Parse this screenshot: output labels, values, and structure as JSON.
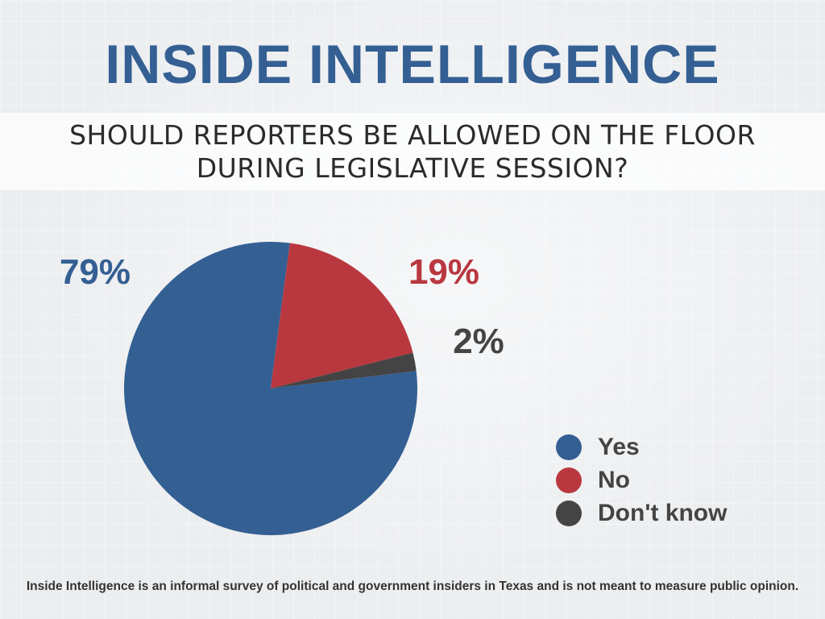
{
  "header": {
    "title": "INSIDE INTELLIGENCE",
    "question_line1": "SHOULD REPORTERS BE ALLOWED ON THE FLOOR",
    "question_line2": "DURING LEGISLATIVE SESSION?"
  },
  "chart_data": {
    "type": "pie",
    "title": "SHOULD REPORTERS BE ALLOWED ON THE FLOOR DURING LEGISLATIVE SESSION?",
    "categories": [
      "Yes",
      "No",
      "Don't know"
    ],
    "values": [
      79,
      19,
      2
    ],
    "value_labels": [
      "79%",
      "19%",
      "2%"
    ],
    "colors": [
      "#345f93",
      "#b9383f",
      "#444444"
    ],
    "legend_position": "bottom-right"
  },
  "legend": {
    "items": [
      {
        "label": "Yes",
        "color": "#345f93"
      },
      {
        "label": "No",
        "color": "#b9383f"
      },
      {
        "label": "Don't know",
        "color": "#444444"
      }
    ]
  },
  "footnote": "Inside Intelligence is an informal survey of political and government insiders in Texas and is not meant to measure public opinion."
}
